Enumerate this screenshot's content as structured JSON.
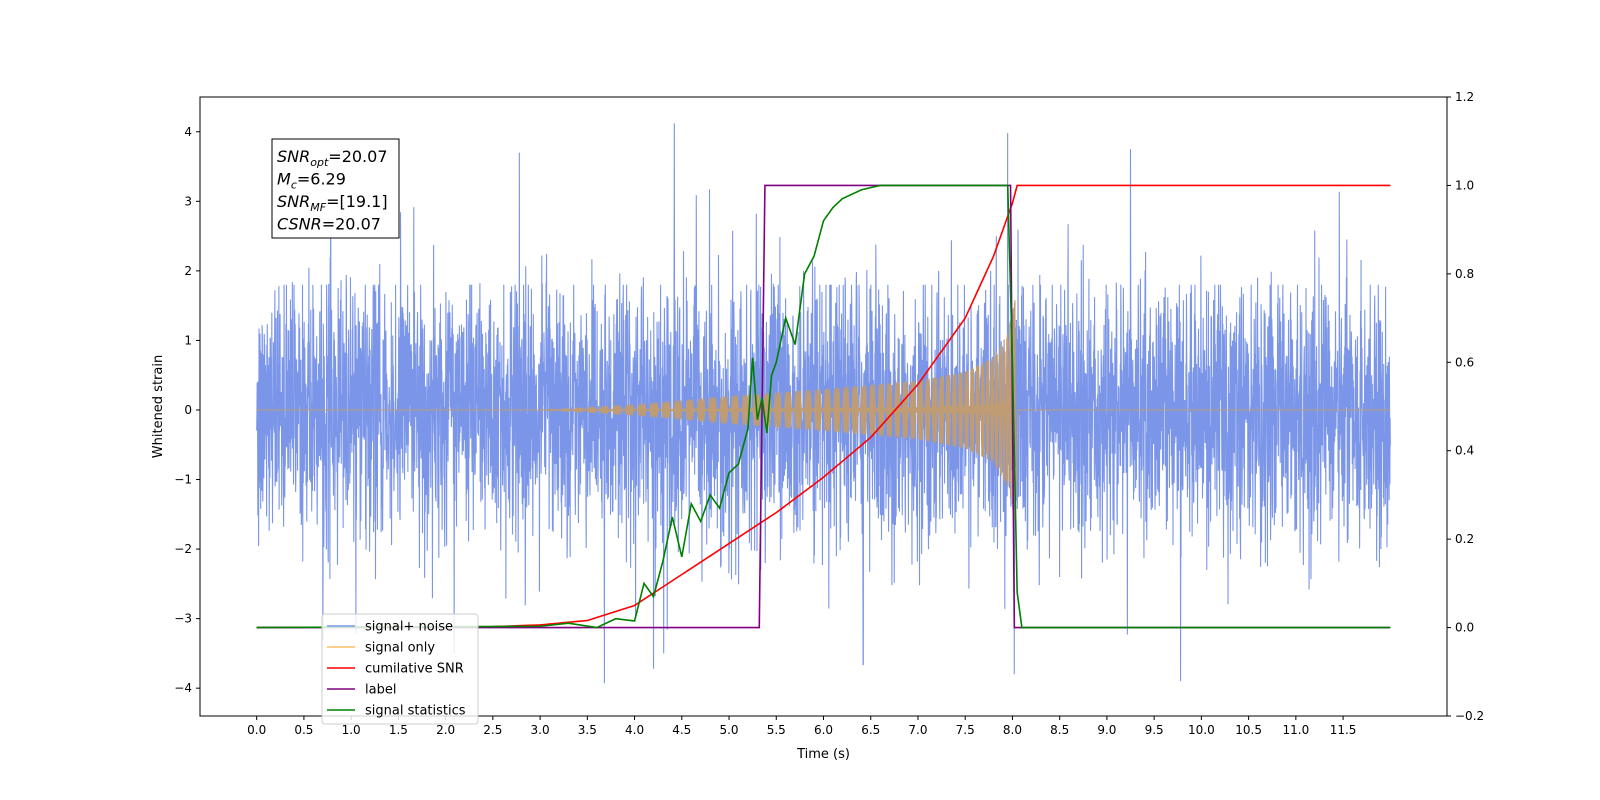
{
  "chart_data": {
    "type": "line",
    "xlabel": "Time (s)",
    "ylabel": "Whitened strain",
    "xlim": [
      -0.6,
      12.6
    ],
    "ylim": [
      -4.4,
      4.5
    ],
    "ylim_right": [
      -0.2,
      1.2
    ],
    "x_ticks": [
      0.0,
      0.5,
      1.0,
      1.5,
      2.0,
      2.5,
      3.0,
      3.5,
      4.0,
      4.5,
      5.0,
      5.5,
      6.0,
      6.5,
      7.0,
      7.5,
      8.0,
      8.5,
      9.0,
      9.5,
      10.0,
      10.5,
      11.0,
      11.5
    ],
    "x_tick_labels": [
      "0.0",
      "0.5",
      "1.0",
      "1.5",
      "2.0",
      "2.5",
      "3.0",
      "3.5",
      "4.0",
      "4.5",
      "5.0",
      "5.5",
      "6.0",
      "6.5",
      "7.0",
      "7.5",
      "8.0",
      "8.5",
      "9.0",
      "9.5",
      "10.0",
      "10.5",
      "11.0",
      "11.5"
    ],
    "y_ticks": [
      -4,
      -3,
      -2,
      -1,
      0,
      1,
      2,
      3,
      4
    ],
    "y_tick_labels": [
      "−4",
      "−3",
      "−2",
      "−1",
      "0",
      "1",
      "2",
      "3",
      "4"
    ],
    "y2_ticks": [
      -0.2,
      0.0,
      0.2,
      0.4,
      0.6,
      0.8,
      1.0,
      1.2
    ],
    "y2_tick_labels": [
      "−0.2",
      "0.0",
      "0.2",
      "0.4",
      "0.6",
      "0.8",
      "1.0",
      "1.2"
    ],
    "annotation_lines": [
      {
        "main": "SNR",
        "sub": "opt",
        "rest": "=20.07"
      },
      {
        "main": "M",
        "sub": "c",
        "rest": "=6.29"
      },
      {
        "main": "SNR",
        "sub": "MF",
        "rest": "=[19.1]"
      },
      {
        "main": "CSNR",
        "sub": "",
        "rest": "=20.07"
      }
    ],
    "legend": {
      "placement": "lower-left",
      "entries": [
        "signal+ noise",
        "signal only",
        "cumilative SNR",
        "label",
        "signal statistics"
      ],
      "hidden_entry": "signal only"
    },
    "colors": {
      "noise": "#7b96e8",
      "signal": "#bf9c73",
      "signal_legend": "#ffbf66",
      "csnr": "#ff0000",
      "label": "#800080",
      "stats": "#008000"
    },
    "series": [
      {
        "name": "signal+ noise",
        "axis": "left",
        "x_range": [
          0.0,
          12.0
        ],
        "baseline_band": [
          -1.8,
          1.8
        ],
        "spike_extremes": [
          {
            "x": 4.42,
            "y": 4.12
          },
          {
            "x": 3.68,
            "y": -3.93
          },
          {
            "x": 9.78,
            "y": -3.9
          },
          {
            "x": 8.02,
            "y": -3.8
          },
          {
            "x": 7.95,
            "y": 3.98
          },
          {
            "x": 6.42,
            "y": -3.66
          },
          {
            "x": 4.2,
            "y": -3.72
          },
          {
            "x": 2.78,
            "y": 3.7
          },
          {
            "x": 9.25,
            "y": 3.75
          }
        ]
      },
      {
        "name": "signal only",
        "axis": "left",
        "chirp_start": 3.0,
        "merger": 8.03,
        "envelope": [
          {
            "x": 3.0,
            "y": 0.0
          },
          {
            "x": 4.0,
            "y": 0.08
          },
          {
            "x": 5.0,
            "y": 0.2
          },
          {
            "x": 6.0,
            "y": 0.3
          },
          {
            "x": 7.0,
            "y": 0.42
          },
          {
            "x": 7.5,
            "y": 0.55
          },
          {
            "x": 7.8,
            "y": 0.75
          },
          {
            "x": 7.95,
            "y": 1.1
          },
          {
            "x": 8.03,
            "y": 1.6
          }
        ]
      },
      {
        "name": "cumilative SNR",
        "axis": "right",
        "x": [
          0.0,
          2.5,
          3.0,
          3.5,
          4.0,
          4.5,
          5.0,
          5.5,
          6.0,
          6.5,
          7.0,
          7.5,
          7.8,
          8.0,
          8.05,
          12.0
        ],
        "y": [
          0.0,
          0.002,
          0.006,
          0.016,
          0.05,
          0.12,
          0.19,
          0.26,
          0.34,
          0.43,
          0.55,
          0.7,
          0.84,
          0.96,
          1.0,
          1.0
        ]
      },
      {
        "name": "label",
        "axis": "right",
        "x": [
          0.0,
          5.32,
          5.38,
          7.98,
          8.02,
          12.0
        ],
        "y": [
          0.0,
          0.0,
          1.0,
          1.0,
          0.0,
          0.0
        ]
      },
      {
        "name": "signal statistics",
        "axis": "right",
        "x": [
          0.0,
          3.0,
          3.3,
          3.6,
          3.8,
          4.0,
          4.1,
          4.2,
          4.3,
          4.4,
          4.5,
          4.6,
          4.7,
          4.8,
          4.9,
          5.0,
          5.1,
          5.2,
          5.25,
          5.3,
          5.35,
          5.4,
          5.45,
          5.5,
          5.6,
          5.7,
          5.8,
          5.9,
          6.0,
          6.1,
          6.2,
          6.4,
          6.5,
          6.6,
          6.8,
          7.0,
          7.5,
          7.95,
          8.0,
          8.05,
          8.1,
          12.0
        ],
        "y": [
          0.0,
          0.003,
          0.01,
          0.0,
          0.02,
          0.015,
          0.1,
          0.07,
          0.15,
          0.25,
          0.16,
          0.28,
          0.24,
          0.3,
          0.27,
          0.35,
          0.37,
          0.45,
          0.61,
          0.47,
          0.52,
          0.44,
          0.57,
          0.6,
          0.7,
          0.64,
          0.8,
          0.84,
          0.92,
          0.95,
          0.97,
          0.99,
          0.995,
          1.0,
          1.0,
          1.0,
          1.0,
          1.0,
          0.6,
          0.08,
          0.0,
          0.0
        ]
      }
    ]
  }
}
